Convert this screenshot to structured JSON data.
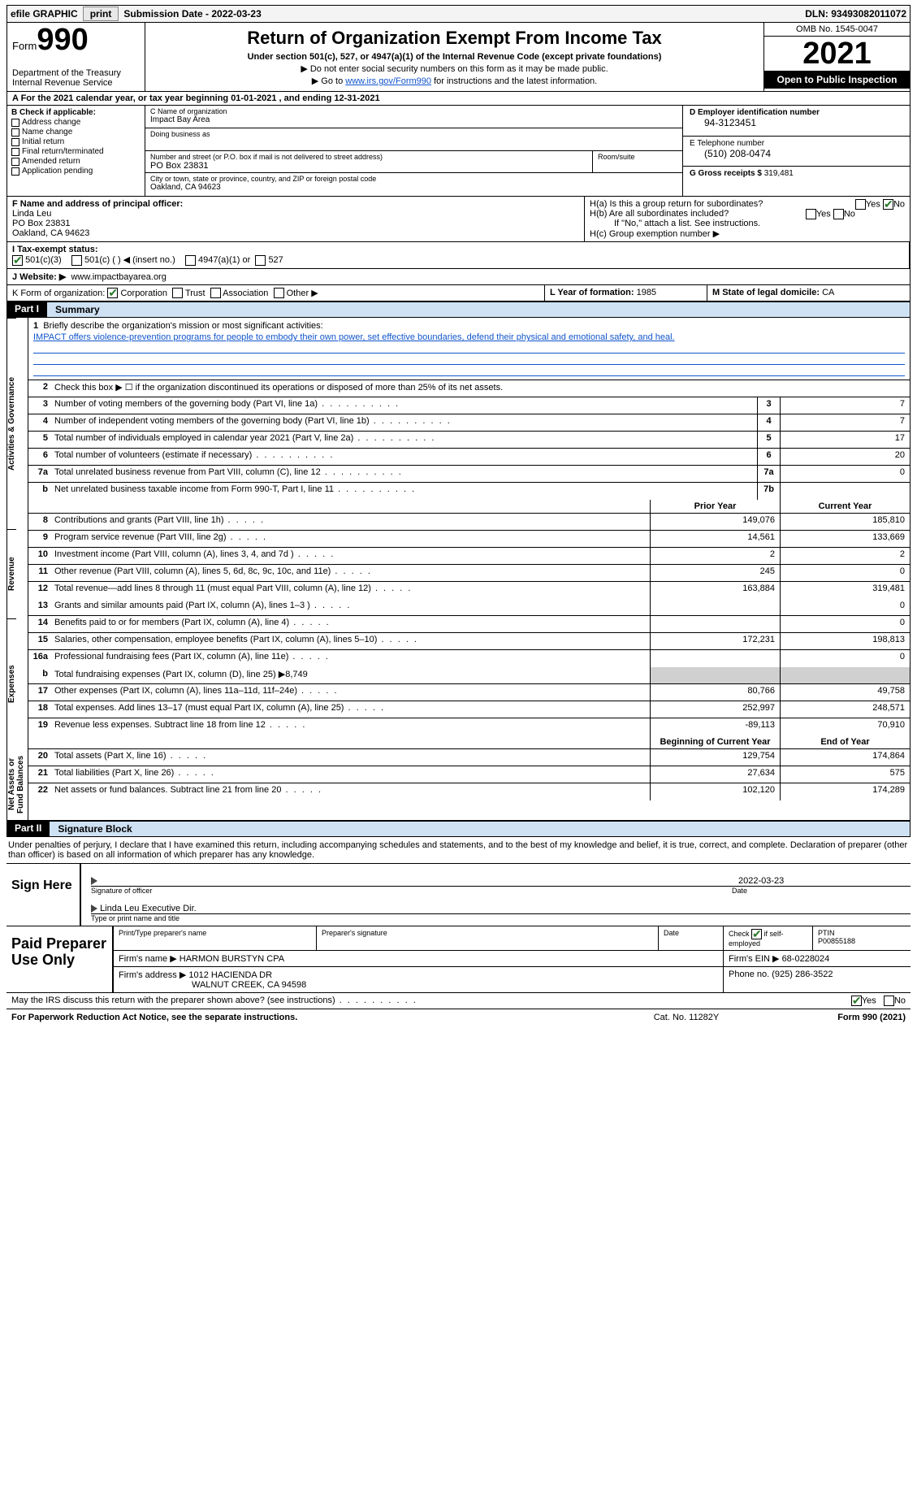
{
  "topbar": {
    "efile": "efile GRAPHIC",
    "print": "print",
    "submission": "Submission Date - 2022-03-23",
    "dln": "DLN: 93493082011072"
  },
  "header": {
    "form_word": "Form",
    "form_number": "990",
    "dept": "Department of the Treasury\nInternal Revenue Service",
    "title": "Return of Organization Exempt From Income Tax",
    "subtitle": "Under section 501(c), 527, or 4947(a)(1) of the Internal Revenue Code (except private foundations)",
    "instr1": "▶ Do not enter social security numbers on this form as it may be made public.",
    "instr2_pre": "▶ Go to ",
    "instr2_link": "www.irs.gov/Form990",
    "instr2_post": " for instructions and the latest information.",
    "omb": "OMB No. 1545-0047",
    "year": "2021",
    "open": "Open to Public Inspection"
  },
  "row_a": "A  For the 2021 calendar year, or tax year beginning 01-01-2021    , and ending 12-31-2021",
  "section_b": {
    "head": "B Check if applicable:",
    "opts": [
      "Address change",
      "Name change",
      "Initial return",
      "Final return/terminated",
      "Amended return",
      "Application pending"
    ]
  },
  "section_c": {
    "name_lbl": "C Name of organization",
    "name": "Impact Bay Area",
    "dba_lbl": "Doing business as",
    "addr_lbl": "Number and street (or P.O. box if mail is not delivered to street address)",
    "room_lbl": "Room/suite",
    "addr": "PO Box 23831",
    "city_lbl": "City or town, state or province, country, and ZIP or foreign postal code",
    "city": "Oakland, CA  94623"
  },
  "section_d": {
    "ein_lbl": "D Employer identification number",
    "ein": "94-3123451",
    "phone_lbl": "E Telephone number",
    "phone": "(510) 208-0474",
    "gross_lbl": "G Gross receipts $",
    "gross": "319,481"
  },
  "section_f": {
    "lbl": "F  Name and address of principal officer:",
    "name": "Linda Leu",
    "addr1": "PO Box 23831",
    "addr2": "Oakland, CA  94623"
  },
  "section_h": {
    "ha": "H(a)  Is this a group return for subordinates?",
    "hb": "H(b)  Are all subordinates included?",
    "hb_note": "If \"No,\" attach a list. See instructions.",
    "hc": "H(c)  Group exemption number ▶",
    "yes": "Yes",
    "no": "No"
  },
  "section_i": {
    "lbl": "I   Tax-exempt status:",
    "o1": "501(c)(3)",
    "o2": "501(c) (   ) ◀ (insert no.)",
    "o3": "4947(a)(1) or",
    "o4": "527"
  },
  "section_j": {
    "lbl": "J   Website: ▶",
    "val": "www.impactbayarea.org"
  },
  "section_k": {
    "lbl": "K Form of organization:",
    "o1": "Corporation",
    "o2": "Trust",
    "o3": "Association",
    "o4": "Other ▶"
  },
  "section_l": {
    "lbl": "L Year of formation:",
    "val": "1985"
  },
  "section_m": {
    "lbl": "M State of legal domicile:",
    "val": "CA"
  },
  "part1": {
    "tag": "Part I",
    "title": "Summary"
  },
  "side": {
    "gov": "Activities & Governance",
    "rev": "Revenue",
    "exp": "Expenses",
    "net": "Net Assets or Fund Balances"
  },
  "mission": {
    "lbl": "Briefly describe the organization's mission or most significant activities:",
    "txt": "IMPACT offers violence-prevention programs for people to embody their own power, set effective boundaries, defend their physical and emotional safety, and heal."
  },
  "line2": "Check this box ▶ ☐  if the organization discontinued its operations or disposed of more than 25% of its net assets.",
  "lines_single": [
    {
      "n": "3",
      "d": "Number of voting members of the governing body (Part VI, line 1a)",
      "b": "3",
      "v": "7"
    },
    {
      "n": "4",
      "d": "Number of independent voting members of the governing body (Part VI, line 1b)",
      "b": "4",
      "v": "7"
    },
    {
      "n": "5",
      "d": "Total number of individuals employed in calendar year 2021 (Part V, line 2a)",
      "b": "5",
      "v": "17"
    },
    {
      "n": "6",
      "d": "Total number of volunteers (estimate if necessary)",
      "b": "6",
      "v": "20"
    },
    {
      "n": "7a",
      "d": "Total unrelated business revenue from Part VIII, column (C), line 12",
      "b": "7a",
      "v": "0"
    },
    {
      "n": "b",
      "d": "Net unrelated business taxable income from Form 990-T, Part I, line 11",
      "b": "7b",
      "v": ""
    }
  ],
  "col_hdr": {
    "prior": "Prior Year",
    "curr": "Current Year",
    "beg": "Beginning of Current Year",
    "end": "End of Year"
  },
  "rev_rows": [
    {
      "n": "8",
      "d": "Contributions and grants (Part VIII, line 1h)",
      "p": "149,076",
      "c": "185,810"
    },
    {
      "n": "9",
      "d": "Program service revenue (Part VIII, line 2g)",
      "p": "14,561",
      "c": "133,669"
    },
    {
      "n": "10",
      "d": "Investment income (Part VIII, column (A), lines 3, 4, and 7d )",
      "p": "2",
      "c": "2"
    },
    {
      "n": "11",
      "d": "Other revenue (Part VIII, column (A), lines 5, 6d, 8c, 9c, 10c, and 11e)",
      "p": "245",
      "c": "0"
    },
    {
      "n": "12",
      "d": "Total revenue—add lines 8 through 11 (must equal Part VIII, column (A), line 12)",
      "p": "163,884",
      "c": "319,481"
    }
  ],
  "exp_rows": [
    {
      "n": "13",
      "d": "Grants and similar amounts paid (Part IX, column (A), lines 1–3 )",
      "p": "",
      "c": "0"
    },
    {
      "n": "14",
      "d": "Benefits paid to or for members (Part IX, column (A), line 4)",
      "p": "",
      "c": "0"
    },
    {
      "n": "15",
      "d": "Salaries, other compensation, employee benefits (Part IX, column (A), lines 5–10)",
      "p": "172,231",
      "c": "198,813"
    },
    {
      "n": "16a",
      "d": "Professional fundraising fees (Part IX, column (A), line 11e)",
      "p": "",
      "c": "0"
    }
  ],
  "line16b": {
    "n": "b",
    "d": "Total fundraising expenses (Part IX, column (D), line 25) ▶",
    "v": "8,749"
  },
  "exp_rows2": [
    {
      "n": "17",
      "d": "Other expenses (Part IX, column (A), lines 11a–11d, 11f–24e)",
      "p": "80,766",
      "c": "49,758"
    },
    {
      "n": "18",
      "d": "Total expenses. Add lines 13–17 (must equal Part IX, column (A), line 25)",
      "p": "252,997",
      "c": "248,571"
    },
    {
      "n": "19",
      "d": "Revenue less expenses. Subtract line 18 from line 12",
      "p": "-89,113",
      "c": "70,910"
    }
  ],
  "net_rows": [
    {
      "n": "20",
      "d": "Total assets (Part X, line 16)",
      "p": "129,754",
      "c": "174,864"
    },
    {
      "n": "21",
      "d": "Total liabilities (Part X, line 26)",
      "p": "27,634",
      "c": "575"
    },
    {
      "n": "22",
      "d": "Net assets or fund balances. Subtract line 21 from line 20",
      "p": "102,120",
      "c": "174,289"
    }
  ],
  "part2": {
    "tag": "Part II",
    "title": "Signature Block"
  },
  "penalty": "Under penalties of perjury, I declare that I have examined this return, including accompanying schedules and statements, and to the best of my knowledge and belief, it is true, correct, and complete. Declaration of preparer (other than officer) is based on all information of which preparer has any knowledge.",
  "sign": {
    "here": "Sign Here",
    "sig_lbl": "Signature of officer",
    "date_lbl": "Date",
    "date": "2022-03-23",
    "name": "Linda Leu  Executive Dir.",
    "name_lbl": "Type or print name and title"
  },
  "prep": {
    "title": "Paid Preparer Use Only",
    "r1": {
      "c1": "Print/Type preparer's name",
      "c2": "Preparer's signature",
      "c3": "Date",
      "c4a": "Check",
      "c4b": "if self-employed",
      "c5a": "PTIN",
      "c5b": "P00855188"
    },
    "r2": {
      "lbl": "Firm's name    ▶",
      "val": "HARMON BURSTYN CPA",
      "ein_lbl": "Firm's EIN ▶",
      "ein": "68-0228024"
    },
    "r3": {
      "lbl": "Firm's address ▶",
      "val1": "1012 HACIENDA DR",
      "val2": "WALNUT CREEK, CA  94598",
      "ph_lbl": "Phone no.",
      "ph": "(925) 286-3522"
    }
  },
  "discuss": {
    "q": "May the IRS discuss this return with the preparer shown above? (see instructions)",
    "yes": "Yes",
    "no": "No"
  },
  "footer": {
    "pra": "For Paperwork Reduction Act Notice, see the separate instructions.",
    "cat": "Cat. No. 11282Y",
    "form": "Form 990 (2021)"
  }
}
